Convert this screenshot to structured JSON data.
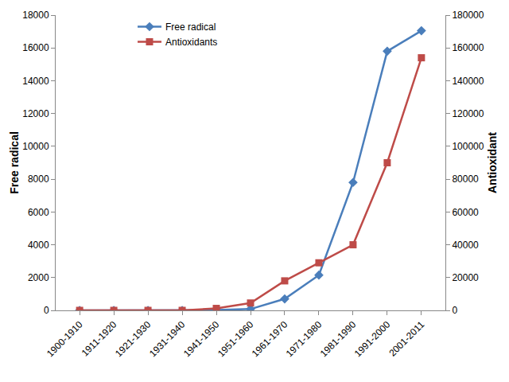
{
  "chart_data": {
    "type": "line",
    "categories": [
      "1900-1910",
      "1911-1920",
      "1921-1930",
      "1931-1940",
      "1941-1950",
      "1951-1960",
      "1961-1970",
      "1971-1980",
      "1981-1990",
      "1991-2000",
      "2001-2011"
    ],
    "series": [
      {
        "name": "Free radical",
        "color": "#4a7ebb",
        "marker": "diamond",
        "line_style": "solid",
        "values": [
          0,
          0,
          0,
          0,
          20,
          80,
          700,
          2150,
          7800,
          15800,
          17050
        ]
      },
      {
        "name": "Antioxidants",
        "color": "#be4b48",
        "marker": "square",
        "line_style": "solid",
        "axis": "y2",
        "values": [
          0,
          0,
          0,
          0,
          1200,
          4500,
          18000,
          29000,
          40000,
          90000,
          154000
        ]
      }
    ],
    "y_label": "Free radical",
    "y2_label": "Antioxidant",
    "ylim": [
      0,
      18000
    ],
    "yticks": [
      0,
      2000,
      4000,
      6000,
      8000,
      10000,
      12000,
      14000,
      16000,
      18000
    ],
    "y2lim": [
      0,
      180000
    ],
    "y2ticks": [
      0,
      20000,
      40000,
      60000,
      80000,
      100000,
      120000,
      140000,
      160000,
      180000
    ],
    "grid": false,
    "legend": "upper left"
  }
}
